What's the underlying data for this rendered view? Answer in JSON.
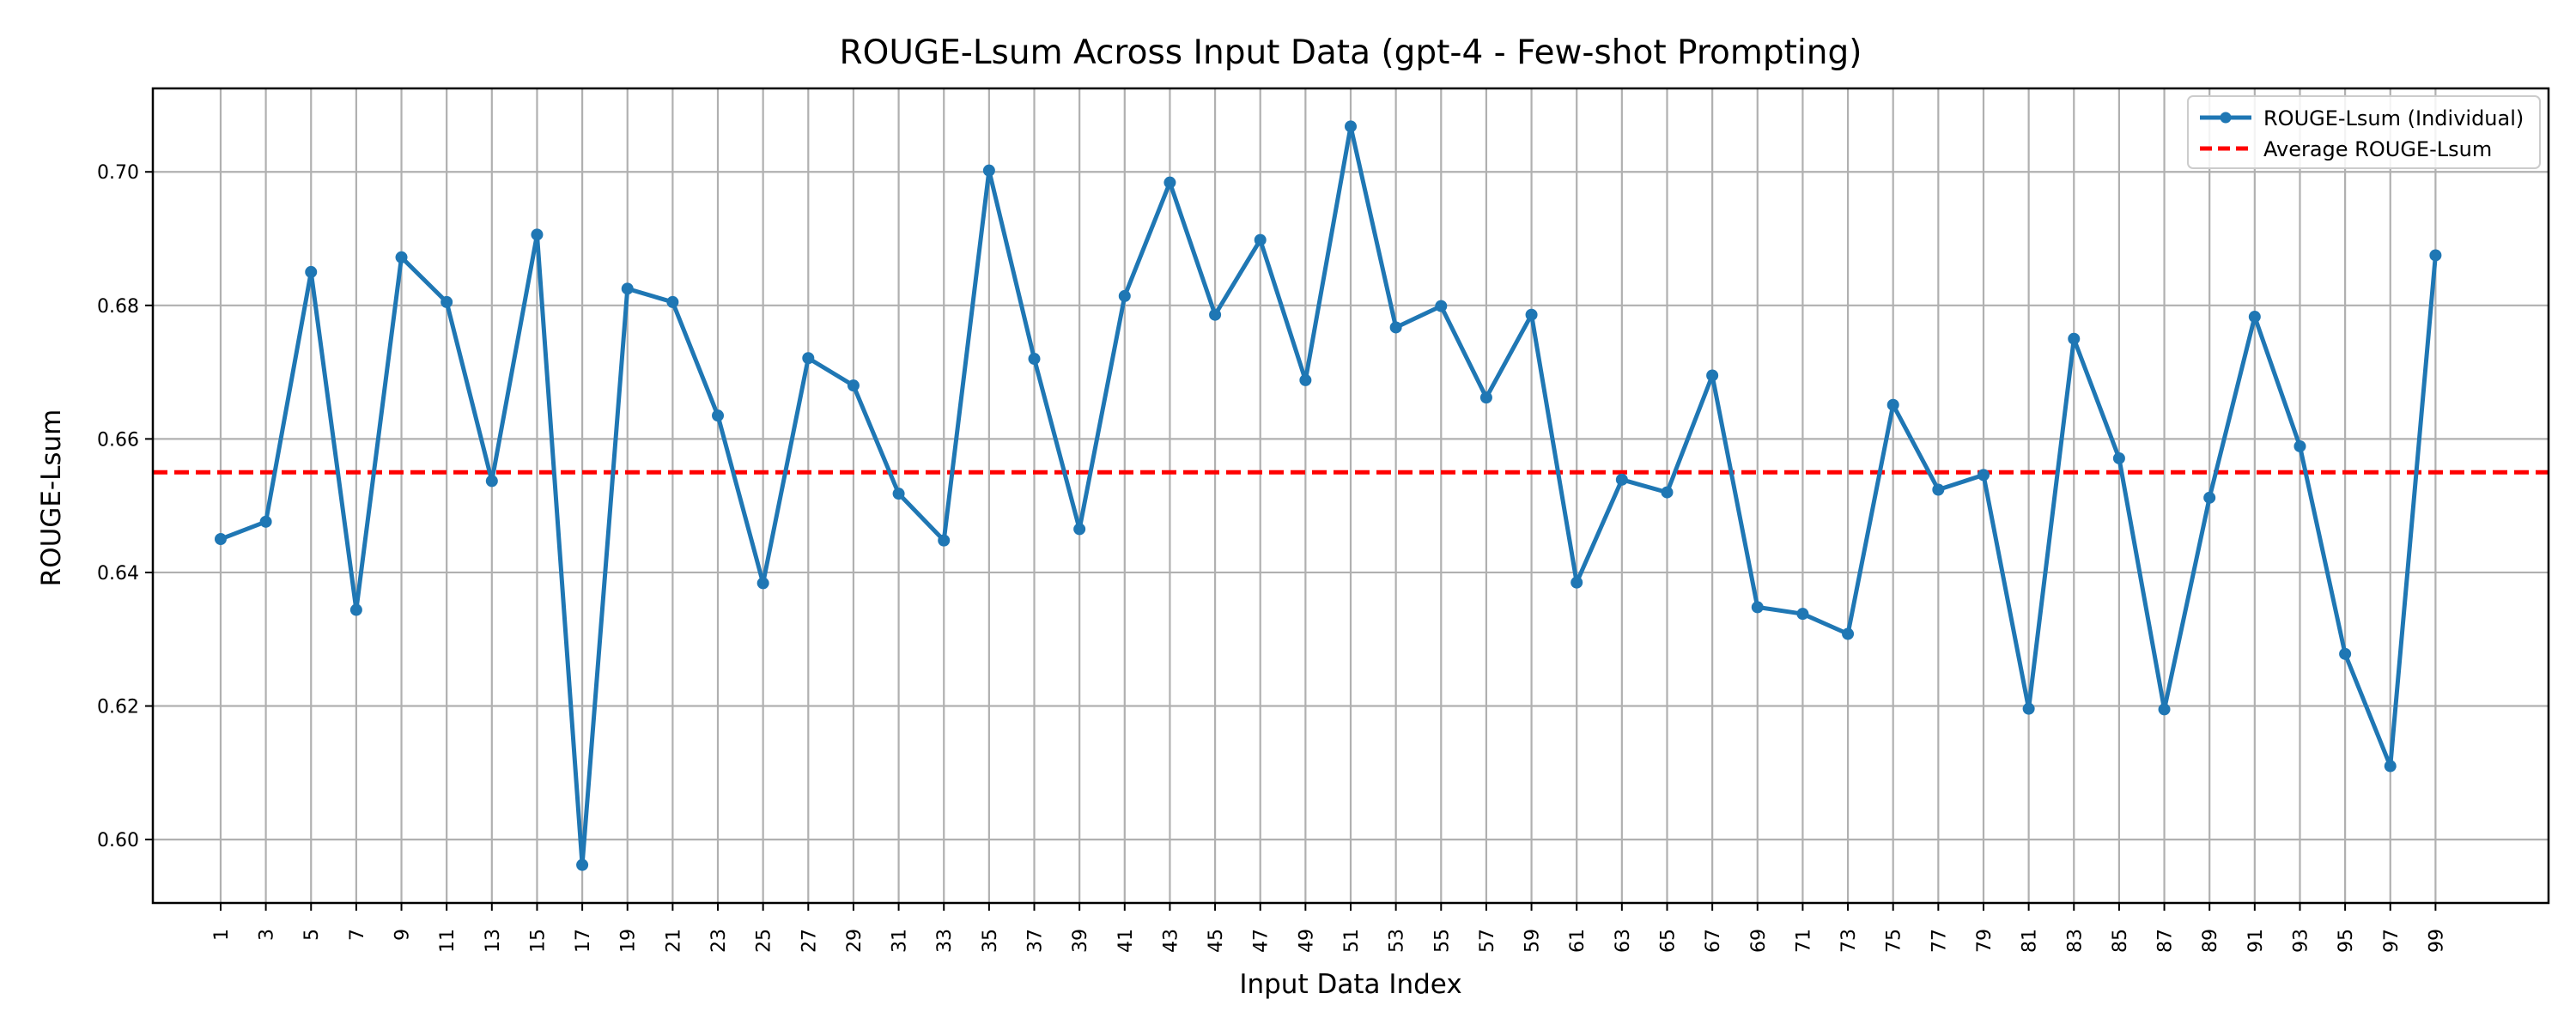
{
  "chart_data": {
    "type": "line",
    "title": "ROUGE-Lsum Across Input Data (gpt-4 - Few-shot Prompting)",
    "xlabel": "Input Data Index",
    "ylabel": "ROUGE-Lsum",
    "ylim": [
      0.5905,
      0.7125
    ],
    "xlim": [
      -1.5,
      51.5
    ],
    "grid": true,
    "legend_position": "top-right",
    "categories": [
      "1",
      "3",
      "5",
      "7",
      "9",
      "11",
      "13",
      "15",
      "17",
      "19",
      "21",
      "23",
      "25",
      "27",
      "29",
      "31",
      "33",
      "35",
      "37",
      "39",
      "41",
      "43",
      "45",
      "47",
      "49",
      "51",
      "53",
      "55",
      "57",
      "59",
      "61",
      "63",
      "65",
      "67",
      "69",
      "71",
      "73",
      "75",
      "77",
      "79",
      "81",
      "83",
      "85",
      "87",
      "89",
      "91",
      "93",
      "95",
      "97",
      "99"
    ],
    "series": [
      {
        "name": "ROUGE-Lsum (Individual)",
        "color": "#1f77b4",
        "values": [
          0.645,
          0.6476,
          0.685,
          0.6344,
          0.6872,
          0.6805,
          0.6537,
          0.6906,
          0.5962,
          0.6825,
          0.6805,
          0.6635,
          0.6384,
          0.6721,
          0.668,
          0.6518,
          0.6448,
          0.7002,
          0.672,
          0.6465,
          0.6814,
          0.6984,
          0.6786,
          0.6898,
          0.6688,
          0.7068,
          0.6767,
          0.6799,
          0.6662,
          0.6786,
          0.6385,
          0.6539,
          0.652,
          0.6695,
          0.6348,
          0.6338,
          0.6308,
          0.6651,
          0.6524,
          0.6546,
          0.6196,
          0.675,
          0.6571,
          0.6195,
          0.6512,
          0.6783,
          0.6589,
          0.6278,
          0.611,
          0.6875
        ]
      }
    ],
    "average": {
      "name": "Average ROUGE-Lsum",
      "value": 0.655,
      "color": "#ff0000"
    },
    "yticks": [
      0.6,
      0.62,
      0.64,
      0.66,
      0.68,
      0.7
    ],
    "ytick_labels": [
      "0.60",
      "0.62",
      "0.64",
      "0.66",
      "0.68",
      "0.70"
    ]
  }
}
